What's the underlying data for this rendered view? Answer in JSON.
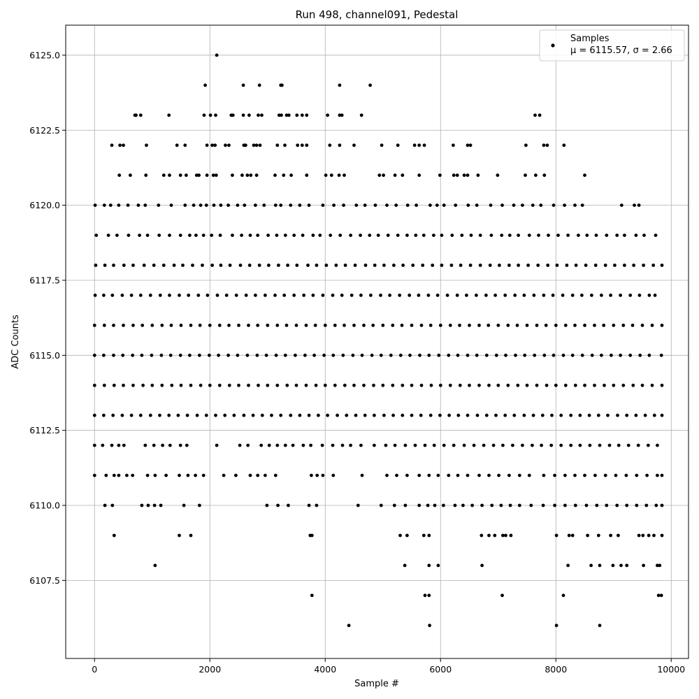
{
  "chart_data": {
    "type": "scatter",
    "title": "Run 498, channel091, Pedestal",
    "xlabel": "Sample #",
    "ylabel": "ADC Counts",
    "xlim": [
      -500,
      10300
    ],
    "ylim": [
      6104.9,
      6126.0
    ],
    "x_ticks": [
      0,
      2000,
      4000,
      6000,
      8000,
      10000
    ],
    "x_tick_labels": [
      "0",
      "2000",
      "4000",
      "6000",
      "8000",
      "10000"
    ],
    "y_ticks": [
      6107.5,
      6110.0,
      6112.5,
      6115.0,
      6117.5,
      6120.0,
      6122.5,
      6125.0
    ],
    "y_tick_labels": [
      "6107.5",
      "6110.0",
      "6112.5",
      "6115.0",
      "6117.5",
      "6120.0",
      "6122.5",
      "6125.0"
    ],
    "grid": true,
    "legend_position": "top-right",
    "marker_color": "#000000",
    "series": [
      {
        "name": "Samples",
        "legend_stats": "μ = 6115.57, σ = 2.66",
        "n_samples": 9850,
        "levels": [
          {
            "y": 6125,
            "x": [
              2120
            ]
          },
          {
            "y": 6124,
            "x": [
              1920,
              2580,
              2860,
              3230,
              3250,
              4250,
              4780
            ]
          },
          {
            "y": 6123,
            "x": [
              700,
              720,
              800,
              1290,
              1900,
              2010,
              2100,
              2370,
              2400,
              2580,
              2680,
              2840,
              2900,
              3200,
              3240,
              3330,
              3370,
              3510,
              3600,
              3680,
              4040,
              4250,
              4290,
              4630,
              7640,
              7720
            ]
          },
          {
            "y": 6122,
            "x": [
              300,
              440,
              500,
              900,
              1430,
              1570,
              1950,
              2040,
              2090,
              2270,
              2330,
              2590,
              2620,
              2760,
              2810,
              2870,
              3170,
              3300,
              3520,
              3600,
              3680,
              4080,
              4250,
              4500,
              4980,
              5260,
              5550,
              5630,
              5720,
              6220,
              6470,
              6520,
              7480,
              7790,
              7850,
              8140
            ]
          },
          {
            "y": 6121,
            "x": [
              430,
              620,
              890,
              1200,
              1300,
              1490,
              1590,
              1770,
              1810,
              1950,
              2060,
              2110,
              2390,
              2560,
              2650,
              2710,
              2810,
              3130,
              3280,
              3410,
              3680,
              4010,
              4110,
              4240,
              4330,
              4940,
              5010,
              5210,
              5340,
              5630,
              5990,
              6230,
              6290,
              6410,
              6470,
              6650,
              6990,
              7470,
              7650,
              7800,
              8500
            ]
          },
          {
            "y": 6120,
            "x": [
              10,
              170,
              280,
              420,
              580,
              760,
              880,
              1110,
              1330,
              1570,
              1720,
              1840,
              1940,
              2070,
              2190,
              2320,
              2480,
              2600,
              2790,
              2940,
              3140,
              3230,
              3400,
              3560,
              3720,
              3960,
              4150,
              4320,
              4540,
              4690,
              4870,
              5070,
              5230,
              5430,
              5580,
              5820,
              5940,
              6060,
              6260,
              6480,
              6630,
              6870,
              7070,
              7270,
              7420,
              7600,
              7740,
              7960,
              8150,
              8330,
              8460,
              9140,
              9360,
              9440
            ]
          },
          {
            "y": 6119,
            "x": [
              30,
              240,
              390,
              590,
              780,
              920,
              1120,
              1300,
              1490,
              1650,
              1760,
              1890,
              2030,
              2180,
              2390,
              2550,
              2700,
              2830,
              3010,
              3160,
              3310,
              3460,
              3610,
              3790,
              3910,
              4090,
              4260,
              4440,
              4610,
              4770,
              4920,
              5090,
              5260,
              5420,
              5570,
              5710,
              5880,
              6020,
              6200,
              6370,
              6530,
              6690,
              6880,
              7060,
              7200,
              7350,
              7540,
              7700,
              7870,
              8040,
              8210,
              8390,
              8540,
              8700,
              8880,
              9060,
              9190,
              9390,
              9530,
              9730
            ]
          },
          {
            "y": 6118,
            "x": [
              20,
              180,
              330,
              510,
              670,
              860,
              1030,
              1200,
              1380,
              1530,
              1700,
              1870,
              2040,
              2190,
              2350,
              2530,
              2690,
              2860,
              3020,
              3190,
              3350,
              3510,
              3700,
              3850,
              4020,
              4190,
              4350,
              4520,
              4700,
              4860,
              5020,
              5190,
              5350,
              5520,
              5690,
              5860,
              6020,
              6190,
              6350,
              6520,
              6690,
              6860,
              7020,
              7190,
              7350,
              7520,
              7690,
              7860,
              8020,
              8190,
              8350,
              8520,
              8690,
              8860,
              9020,
              9190,
              9350,
              9520,
              9690,
              9840
            ]
          },
          {
            "y": 6117,
            "x": [
              10,
              160,
              310,
              480,
              640,
              800,
              970,
              1140,
              1300,
              1470,
              1630,
              1800,
              1960,
              2130,
              2290,
              2460,
              2630,
              2790,
              2960,
              3130,
              3290,
              3460,
              3630,
              3790,
              3960,
              4130,
              4290,
              4460,
              4620,
              4790,
              4960,
              5120,
              5290,
              5460,
              5620,
              5790,
              5950,
              6120,
              6290,
              6450,
              6620,
              6790,
              6950,
              7120,
              7290,
              7450,
              7620,
              7790,
              7950,
              8120,
              8290,
              8450,
              8620,
              8790,
              8950,
              9120,
              9290,
              9450,
              9620,
              9720
            ]
          },
          {
            "y": 6116,
            "x": [
              0,
              170,
              330,
              500,
              670,
              830,
              1000,
              1170,
              1330,
              1500,
              1670,
              1830,
              2000,
              2170,
              2330,
              2500,
              2670,
              2830,
              3000,
              3170,
              3330,
              3500,
              3670,
              3830,
              4000,
              4170,
              4330,
              4500,
              4670,
              4830,
              5000,
              5170,
              5330,
              5500,
              5670,
              5830,
              6000,
              6170,
              6330,
              6500,
              6670,
              6830,
              7000,
              7170,
              7330,
              7500,
              7670,
              7830,
              8000,
              8170,
              8330,
              8500,
              8670,
              8830,
              9000,
              9170,
              9330,
              9500,
              9670,
              9840
            ]
          },
          {
            "y": 6115,
            "x": [
              0,
              160,
              330,
              490,
              660,
              820,
              990,
              1160,
              1320,
              1490,
              1650,
              1820,
              1990,
              2150,
              2320,
              2480,
              2650,
              2820,
              2980,
              3150,
              3310,
              3480,
              3650,
              3810,
              3980,
              4140,
              4310,
              4480,
              4640,
              4810,
              4970,
              5140,
              5310,
              5470,
              5640,
              5800,
              5970,
              6140,
              6300,
              6470,
              6630,
              6800,
              6970,
              7130,
              7300,
              7460,
              7630,
              7800,
              7960,
              8130,
              8290,
              8460,
              8630,
              8790,
              8960,
              9120,
              9290,
              9460,
              9620,
              9830
            ]
          },
          {
            "y": 6114,
            "x": [
              0,
              170,
              340,
              500,
              670,
              840,
              1000,
              1170,
              1340,
              1500,
              1670,
              1840,
              2000,
              2170,
              2340,
              2500,
              2670,
              2840,
              3000,
              3170,
              3340,
              3500,
              3670,
              3840,
              4000,
              4170,
              4340,
              4500,
              4670,
              4840,
              5000,
              5170,
              5340,
              5500,
              5670,
              5840,
              6000,
              6170,
              6340,
              6500,
              6670,
              6840,
              7000,
              7170,
              7340,
              7500,
              7670,
              7840,
              8000,
              8170,
              8340,
              8500,
              8670,
              8840,
              9000,
              9170,
              9340,
              9500,
              9670,
              9840
            ]
          },
          {
            "y": 6113,
            "x": [
              0,
              160,
              320,
              480,
              640,
              800,
              970,
              1130,
              1290,
              1450,
              1610,
              1780,
              1940,
              2100,
              2260,
              2420,
              2590,
              2750,
              2910,
              3070,
              3230,
              3400,
              3560,
              3720,
              3880,
              4040,
              4210,
              4370,
              4530,
              4690,
              4850,
              5020,
              5180,
              5340,
              5500,
              5660,
              5830,
              5990,
              6150,
              6310,
              6470,
              6640,
              6800,
              6960,
              7120,
              7280,
              7450,
              7610,
              7770,
              7930,
              8090,
              8260,
              8420,
              8580,
              8740,
              8900,
              9070,
              9230,
              9390,
              9550,
              9710,
              9840
            ]
          },
          {
            "y": 6112,
            "x": [
              0,
              140,
              300,
              420,
              510,
              880,
              1030,
              1180,
              1310,
              1490,
              1600,
              2120,
              2520,
              2660,
              2890,
              3030,
              3170,
              3310,
              3440,
              3620,
              3750,
              3950,
              4130,
              4300,
              4440,
              4620,
              4850,
              5050,
              5210,
              5390,
              5560,
              5730,
              5890,
              6060,
              6230,
              6410,
              6580,
              6750,
              6920,
              7080,
              7250,
              7420,
              7590,
              7750,
              7920,
              8090,
              8260,
              8420,
              8590,
              8760,
              8930,
              9090,
              9260,
              9430,
              9600,
              9760
            ]
          },
          {
            "y": 6111,
            "x": [
              0,
              200,
              340,
              420,
              560,
              660,
              920,
              1050,
              1240,
              1470,
              1620,
              1750,
              1890,
              2240,
              2450,
              2700,
              2830,
              2960,
              3140,
              3760,
              3860,
              3960,
              4140,
              4640,
              5070,
              5240,
              5420,
              5630,
              5800,
              5960,
              6140,
              6300,
              6470,
              6670,
              6840,
              7010,
              7190,
              7370,
              7540,
              7790,
              7980,
              8160,
              8330,
              8500,
              8680,
              8860,
              9040,
              9220,
              9400,
              9580,
              9760,
              9840
            ]
          },
          {
            "y": 6110,
            "x": [
              180,
              310,
              820,
              930,
              1040,
              1150,
              1550,
              1820,
              2990,
              3180,
              3360,
              3720,
              3850,
              4570,
              4970,
              5200,
              5390,
              5630,
              5780,
              5900,
              6050,
              6250,
              6390,
              6550,
              6720,
              6890,
              7050,
              7210,
              7370,
              7570,
              7780,
              7980,
              8160,
              8340,
              8530,
              8710,
              8880,
              9060,
              9230,
              9400,
              9570,
              9740,
              9840
            ]
          },
          {
            "y": 6109,
            "x": [
              340,
              1470,
              1670,
              3740,
              3770,
              5300,
              5420,
              5710,
              5800,
              6710,
              6840,
              6940,
              7080,
              7130,
              7220,
              8010,
              8230,
              8290,
              8550,
              8740,
              8950,
              9080,
              9440,
              9510,
              9610,
              9700,
              9840
            ]
          },
          {
            "y": 6108,
            "x": [
              1050,
              5380,
              5800,
              5960,
              6720,
              8210,
              8610,
              8760,
              8990,
              9130,
              9230,
              9520,
              9760,
              9800
            ]
          },
          {
            "y": 6107,
            "x": [
              3770,
              5730,
              5800,
              7070,
              8130,
              9780,
              9830
            ]
          },
          {
            "y": 6106,
            "x": [
              4410,
              5810,
              8010,
              8760
            ]
          }
        ]
      }
    ]
  }
}
